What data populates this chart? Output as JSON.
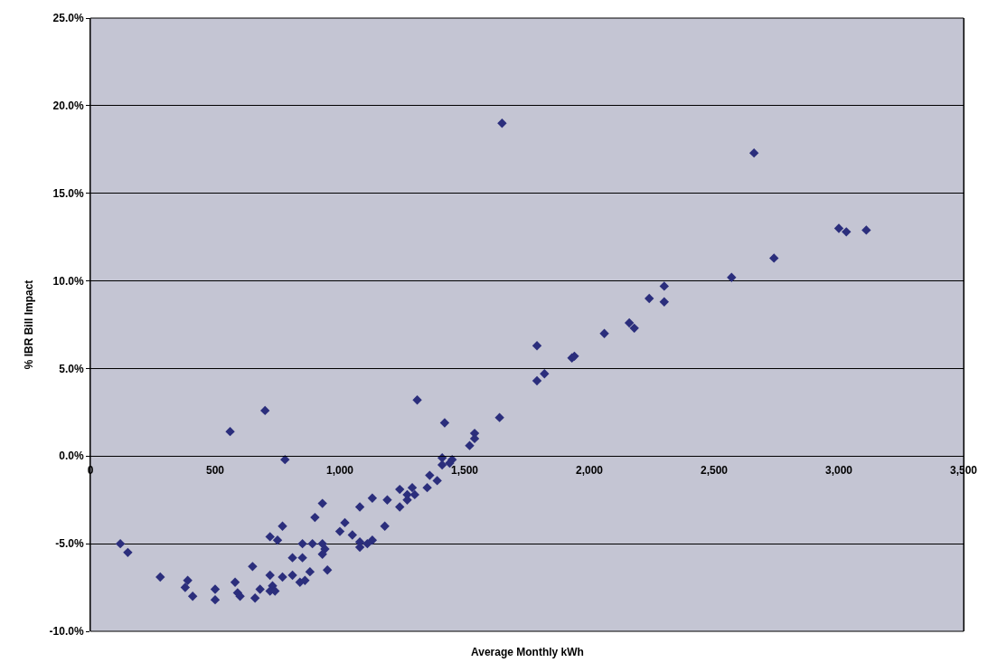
{
  "chart_data": {
    "type": "scatter",
    "xlabel": "Average Monthly kWh",
    "ylabel": "% IBR Bill Impact",
    "x": [
      120,
      150,
      280,
      390,
      380,
      410,
      500,
      500,
      580,
      590,
      600,
      650,
      660,
      680,
      720,
      730,
      720,
      740,
      770,
      810,
      840,
      860,
      880,
      810,
      850,
      850,
      890,
      720,
      750,
      770,
      900,
      560,
      700,
      780,
      1310,
      1420,
      1640,
      1540,
      1540,
      1520,
      1410,
      1450,
      1410,
      1440,
      1360,
      1390,
      1350,
      1240,
      1290,
      1270,
      1300,
      1270,
      1240,
      1190,
      1130,
      1080,
      1180,
      1020,
      1000,
      1050,
      930,
      1080,
      1130,
      1110,
      1080,
      930,
      940,
      930,
      950,
      1650,
      2660,
      3000,
      3030,
      3110,
      2740,
      2570,
      2300,
      2240,
      2300,
      2160,
      2180,
      2060,
      1790,
      1930,
      1940,
      1790,
      1820
    ],
    "series": [
      {
        "color": "#2b2e7c",
        "values": [
          -5.0,
          -5.5,
          -6.9,
          -7.1,
          -7.5,
          -8.0,
          -7.6,
          -8.2,
          -7.2,
          -7.8,
          -8.0,
          -6.3,
          -8.1,
          -7.6,
          -6.8,
          -7.4,
          -7.7,
          -7.7,
          -6.9,
          -6.8,
          -7.2,
          -7.1,
          -6.6,
          -5.8,
          -5.8,
          -5.0,
          -5.0,
          -4.6,
          -4.8,
          -4.0,
          -3.5,
          1.4,
          2.6,
          -0.2,
          3.2,
          1.9,
          2.2,
          1.3,
          1.0,
          0.6,
          -0.1,
          -0.2,
          -0.5,
          -0.4,
          -1.1,
          -1.4,
          -1.8,
          -1.9,
          -1.8,
          -2.2,
          -2.2,
          -2.5,
          -2.9,
          -2.5,
          -2.4,
          -2.9,
          -4.0,
          -3.8,
          -4.3,
          -4.5,
          -2.7,
          -4.9,
          -4.8,
          -5.0,
          -5.2,
          -5.0,
          -5.3,
          -5.6,
          -6.5,
          19.0,
          17.3,
          13.0,
          12.8,
          12.9,
          11.3,
          10.2,
          9.7,
          9.0,
          8.8,
          7.6,
          7.3,
          7.0,
          6.3,
          5.6,
          5.7,
          4.3,
          4.7
        ]
      }
    ],
    "xlim": [
      0,
      3500
    ],
    "xticks": [
      {
        "value": 0,
        "label": "0"
      },
      {
        "value": 500,
        "label": "500"
      },
      {
        "value": 1000,
        "label": "1,000"
      },
      {
        "value": 1500,
        "label": "1,500"
      },
      {
        "value": 2000,
        "label": "2,000"
      },
      {
        "value": 2500,
        "label": "2,500"
      },
      {
        "value": 3000,
        "label": "3,000"
      },
      {
        "value": 3500,
        "label": "3,500"
      }
    ],
    "ylim": [
      -10,
      25
    ],
    "yticks": [
      {
        "value": -10,
        "label": "-10.0%"
      },
      {
        "value": -5,
        "label": "-5.0%"
      },
      {
        "value": 0,
        "label": "0.0%"
      },
      {
        "value": 5,
        "label": "5.0%"
      },
      {
        "value": 10,
        "label": "10.0%"
      },
      {
        "value": 15,
        "label": "15.0%"
      },
      {
        "value": 20,
        "label": "20.0%"
      },
      {
        "value": 25,
        "label": "25.0%"
      }
    ],
    "grid": "y",
    "marker": "diamond"
  }
}
